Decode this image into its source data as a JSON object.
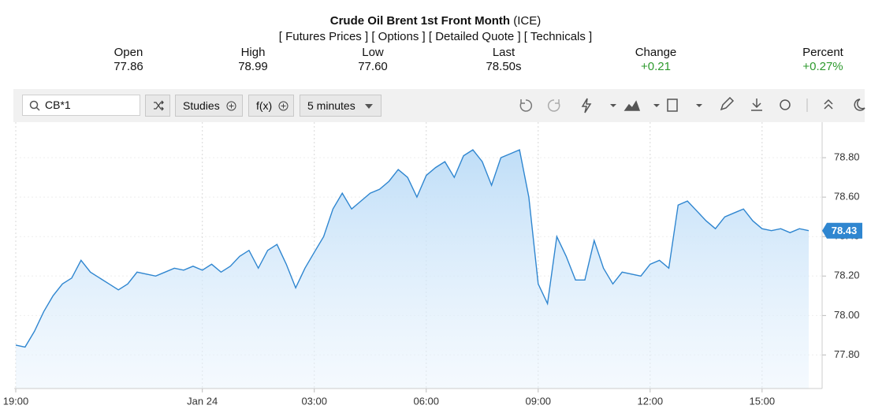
{
  "header": {
    "title": "Crude Oil Brent 1st Front Month",
    "exchange": "(ICE)",
    "links": [
      "[ Futures Prices ]",
      "[ Options ]",
      "[ Detailed Quote ]",
      "[ Technicals ]"
    ]
  },
  "quote": [
    {
      "label": "Open",
      "value": "77.86"
    },
    {
      "label": "High",
      "value": "78.99"
    },
    {
      "label": "Low",
      "value": "77.60"
    },
    {
      "label": "Last",
      "value": "78.50s"
    },
    {
      "label": "Change",
      "value": "+0.21",
      "color": "#2e9a2e"
    },
    {
      "label": "Percent",
      "value": "+0.27%",
      "color": "#2e9a2e"
    }
  ],
  "toolbar": {
    "symbol": "CB*1",
    "studies": "Studies",
    "functions": "f(x)",
    "interval": "5 minutes"
  },
  "chart_data": {
    "type": "line",
    "area": true,
    "color": "#2f86d0",
    "grid": true,
    "categories": [
      "19:00",
      null,
      null,
      null,
      null,
      null,
      null,
      null,
      null,
      null,
      null,
      null,
      null,
      null,
      null,
      null,
      null,
      null,
      null,
      null,
      "Jan 24",
      null,
      null,
      null,
      null,
      null,
      null,
      null,
      null,
      null,
      null,
      null,
      "03:00",
      null,
      null,
      null,
      null,
      null,
      null,
      null,
      null,
      null,
      null,
      null,
      "06:00",
      null,
      null,
      null,
      null,
      null,
      null,
      null,
      null,
      null,
      null,
      null,
      "09:00",
      null,
      null,
      null,
      null,
      null,
      null,
      null,
      null,
      null,
      null,
      null,
      "12:00",
      null,
      null,
      null,
      null,
      null,
      null,
      null,
      null,
      null,
      null,
      null,
      "15:00",
      null,
      null,
      null,
      null,
      null
    ],
    "values": [
      77.85,
      77.84,
      77.92,
      78.02,
      78.1,
      78.16,
      78.19,
      78.28,
      78.22,
      78.19,
      78.16,
      78.13,
      78.16,
      78.22,
      78.21,
      78.2,
      78.22,
      78.24,
      78.23,
      78.25,
      78.23,
      78.26,
      78.22,
      78.25,
      78.3,
      78.33,
      78.24,
      78.33,
      78.36,
      78.26,
      78.14,
      78.24,
      78.32,
      78.4,
      78.54,
      78.62,
      78.54,
      78.58,
      78.62,
      78.64,
      78.68,
      78.74,
      78.7,
      78.6,
      78.71,
      78.75,
      78.78,
      78.7,
      78.81,
      78.84,
      78.78,
      78.66,
      78.8,
      78.82,
      78.84,
      78.6,
      78.16,
      78.06,
      78.4,
      78.3,
      78.18,
      78.18,
      78.38,
      78.24,
      78.16,
      78.22,
      78.21,
      78.2,
      78.26,
      78.28,
      78.24,
      78.56,
      78.58,
      78.53,
      78.48,
      78.44,
      78.5,
      78.52,
      78.54,
      78.48,
      78.44,
      78.43,
      78.44,
      78.42,
      78.44,
      78.43
    ],
    "current_value": 78.43,
    "ylim": [
      77.63,
      78.98
    ],
    "yticks": [
      {
        "value": 77.8,
        "label": "77.80"
      },
      {
        "value": 78.0,
        "label": "78.00"
      },
      {
        "value": 78.2,
        "label": "78.20"
      },
      {
        "value": 78.4,
        "label": "78.40"
      },
      {
        "value": 78.6,
        "label": "78.60"
      },
      {
        "value": 78.8,
        "label": "78.80"
      }
    ]
  }
}
